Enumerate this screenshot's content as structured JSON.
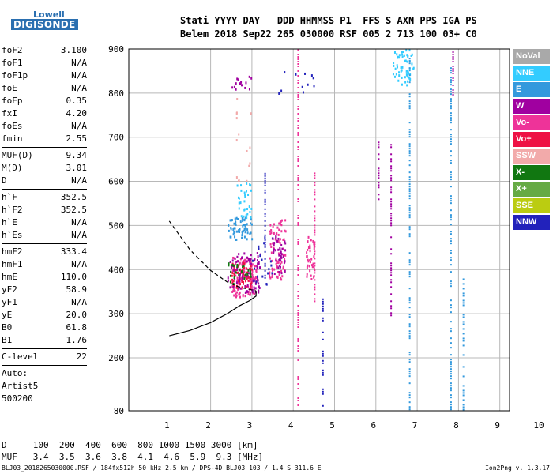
{
  "logo": {
    "line1": "Lowell",
    "line2": "DIGISONDE"
  },
  "header": {
    "line1": "Stati YYYY DAY   DDD HHMMSS P1  FFS S AXN PPS IGA PS",
    "line2": "Belem 2018 Sep22 265 030000 RSF 005 2 713 100 03+ C0"
  },
  "params": [
    {
      "k": "foF2",
      "v": "3.100"
    },
    {
      "k": "foF1",
      "v": "N/A"
    },
    {
      "k": "foF1p",
      "v": "N/A"
    },
    {
      "k": "foE",
      "v": "N/A"
    },
    {
      "k": "foEp",
      "v": "0.35"
    },
    {
      "k": "fxI",
      "v": "4.20"
    },
    {
      "k": "foEs",
      "v": "N/A"
    },
    {
      "k": "fmin",
      "v": "2.55"
    },
    {
      "sep": true
    },
    {
      "k": "MUF(D)",
      "v": "9.34"
    },
    {
      "k": "M(D)",
      "v": "3.01"
    },
    {
      "k": "D",
      "v": "N/A"
    },
    {
      "sep": true
    },
    {
      "k": "h`F",
      "v": "352.5"
    },
    {
      "k": "h`F2",
      "v": "352.5"
    },
    {
      "k": "h`E",
      "v": "N/A"
    },
    {
      "k": "h`Es",
      "v": "N/A"
    },
    {
      "sep": true
    },
    {
      "k": "hmF2",
      "v": "333.4"
    },
    {
      "k": "hmF1",
      "v": "N/A"
    },
    {
      "k": "hmE",
      "v": "110.0"
    },
    {
      "k": "yF2",
      "v": "58.9"
    },
    {
      "k": "yF1",
      "v": "N/A"
    },
    {
      "k": "yE",
      "v": "20.0"
    },
    {
      "k": "B0",
      "v": "61.8"
    },
    {
      "k": "B1",
      "v": "1.76"
    },
    {
      "sep": true
    },
    {
      "k": "C-level",
      "v": "22"
    },
    {
      "sep": true
    }
  ],
  "auto": [
    "Auto:",
    "Artist5",
    "500200"
  ],
  "legend": [
    {
      "label": "NoVal",
      "color": "#a9a9a9"
    },
    {
      "label": "NNE",
      "color": "#33ccff"
    },
    {
      "label": "E",
      "color": "#3399dd"
    },
    {
      "label": "W",
      "color": "#a000a0"
    },
    {
      "label": "Vo-",
      "color": "#ee3399"
    },
    {
      "label": "Vo+",
      "color": "#ee1144"
    },
    {
      "label": "SSW",
      "color": "#f2aaaa"
    },
    {
      "label": "X-",
      "color": "#117711"
    },
    {
      "label": "X+",
      "color": "#66aa44"
    },
    {
      "label": "SSE",
      "color": "#bbcc11"
    },
    {
      "label": "NNW",
      "color": "#2222bb"
    }
  ],
  "footer": {
    "line1": "D     100  200  400  600  800 1000 1500 3000 [km]",
    "line2": "MUF   3.4  3.5  3.6  3.8  4.1  4.6  5.9  9.3 [MHz]",
    "file": "BLJ03_2018265030000.RSF / 184fx512h 50 kHz 2.5 km / DPS-4D BLJ03 103 / 1.4 S 311.6 E",
    "version": "Ion2Png v. 1.3.17"
  },
  "chart_data": {
    "type": "scatter",
    "xlabel": "",
    "ylabel": "",
    "xlim": [
      1,
      10
    ],
    "ylim": [
      80,
      900
    ],
    "xticks": [
      1,
      2,
      3,
      4,
      5,
      6,
      7,
      8,
      9,
      10
    ],
    "yticks": [
      80,
      200,
      300,
      400,
      500,
      600,
      700,
      800,
      900
    ],
    "grid": true,
    "legend_position": "right",
    "echo_clusters": [
      {
        "color": "NNE",
        "x": [
          6.4,
          6.9
        ],
        "y": [
          820,
          900
        ],
        "n": 60
      },
      {
        "color": "E",
        "x": [
          2.4,
          3.0
        ],
        "y": [
          470,
          520
        ],
        "n": 60
      },
      {
        "color": "Vo-",
        "x": [
          2.5,
          3.1
        ],
        "y": [
          340,
          430
        ],
        "n": 120
      },
      {
        "color": "W",
        "x": [
          2.4,
          3.2
        ],
        "y": [
          350,
          440
        ],
        "n": 90
      },
      {
        "color": "Vo+",
        "x": [
          2.5,
          3.0
        ],
        "y": [
          360,
          420
        ],
        "n": 50
      },
      {
        "color": "Vo-",
        "x": [
          3.4,
          3.8
        ],
        "y": [
          380,
          520
        ],
        "n": 80
      },
      {
        "color": "W",
        "x": [
          3.5,
          3.8
        ],
        "y": [
          390,
          480
        ],
        "n": 40
      },
      {
        "color": "X-",
        "x": [
          2.4,
          3.0
        ],
        "y": [
          370,
          420
        ],
        "n": 25
      },
      {
        "color": "NNW",
        "x": [
          3.0,
          3.5
        ],
        "y": [
          360,
          480
        ],
        "n": 20
      },
      {
        "color": "Vo-",
        "x": [
          4.3,
          4.5
        ],
        "y": [
          380,
          480
        ],
        "n": 40
      },
      {
        "color": "NNE",
        "x": [
          2.6,
          3.0
        ],
        "y": [
          520,
          600
        ],
        "n": 30
      },
      {
        "color": "SSW",
        "x": [
          2.6,
          3.0
        ],
        "y": [
          600,
          800
        ],
        "n": 15
      },
      {
        "color": "W",
        "x": [
          2.5,
          3.0
        ],
        "y": [
          810,
          840
        ],
        "n": 15
      },
      {
        "color": "NNW",
        "x": [
          3.5,
          4.5
        ],
        "y": [
          800,
          850
        ],
        "n": 12
      }
    ],
    "echo_columns": [
      {
        "color": "Vo-",
        "x": 4.1,
        "y": [
          80,
          900
        ]
      },
      {
        "color": "NNW",
        "x": 3.3,
        "y": [
          380,
          630
        ]
      },
      {
        "color": "Vo-",
        "x": 4.5,
        "y": [
          320,
          620
        ]
      },
      {
        "color": "NNW",
        "x": 4.7,
        "y": [
          90,
          340
        ]
      },
      {
        "color": "W",
        "x": 6.05,
        "y": [
          560,
          690
        ]
      },
      {
        "color": "W",
        "x": 6.35,
        "y": [
          280,
          690
        ]
      },
      {
        "color": "E",
        "x": 6.8,
        "y": [
          80,
          880
        ]
      },
      {
        "color": "E",
        "x": 7.8,
        "y": [
          80,
          880
        ]
      },
      {
        "color": "E",
        "x": 8.1,
        "y": [
          80,
          380
        ]
      },
      {
        "color": "W",
        "x": 7.85,
        "y": [
          780,
          900
        ]
      }
    ],
    "traces": [
      {
        "name": "",
        "style": "solid",
        "x": [
          1.0,
          1.5,
          2.0,
          2.4,
          2.7,
          2.95,
          3.1,
          3.1
        ],
        "y": [
          250,
          262,
          280,
          300,
          318,
          330,
          340,
          352
        ]
      },
      {
        "name": "",
        "style": "dashed",
        "x": [
          1.0,
          1.5,
          2.0,
          2.4,
          2.7,
          3.1
        ],
        "y": [
          510,
          445,
          398,
          372,
          360,
          352
        ]
      }
    ]
  }
}
